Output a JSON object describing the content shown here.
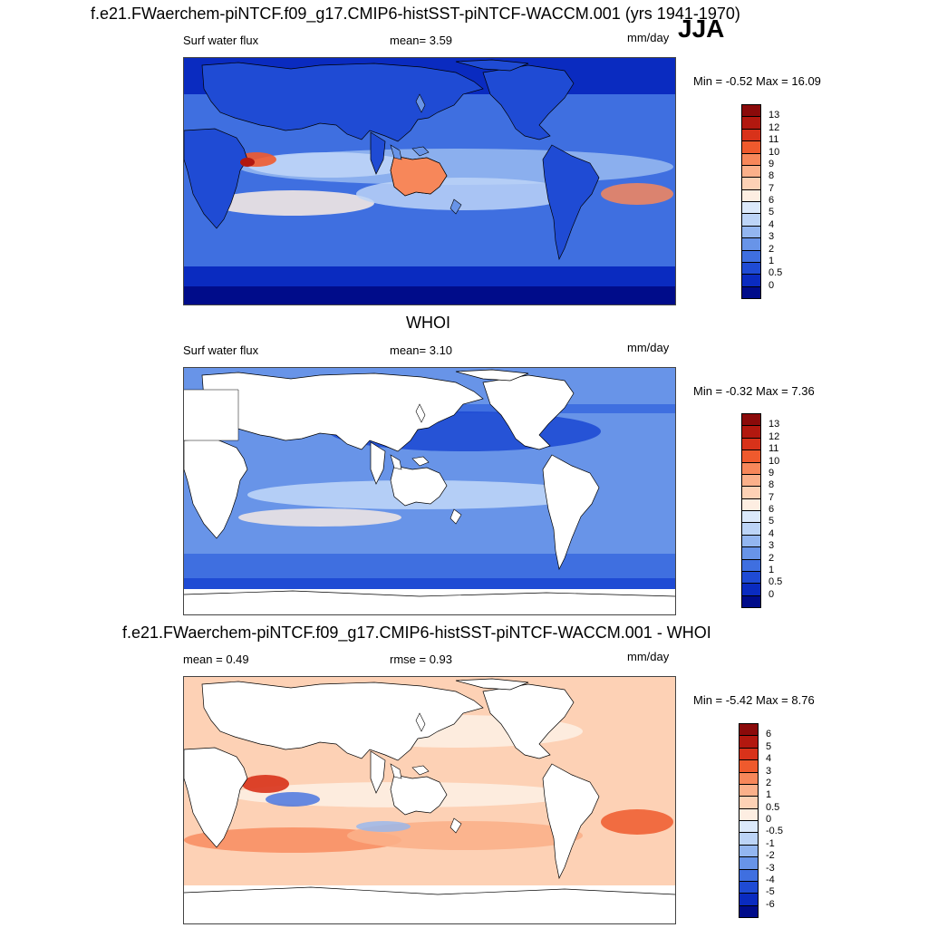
{
  "page": {
    "main_title": "f.e21.FWaerchem-piNTCF.f09_g17.CMIP6-histSST-piNTCF-WACCM.001 (yrs 1941-1970)",
    "season": "JJA"
  },
  "panels": [
    {
      "title": "",
      "left_label": "Surf water flux",
      "mid_label": "mean=   3.59",
      "units": "mm/day",
      "minmax": "Min =  -0.52 Max =  16.09",
      "palette": "precip",
      "colorbar_levels": [
        "13",
        "12",
        "11",
        "10",
        "9",
        "8",
        "7",
        "6",
        "5",
        "4",
        "3",
        "2",
        "1",
        "0.5",
        "0"
      ],
      "colorbar_colors": [
        "#8b0a0a",
        "#b2180f",
        "#d8321a",
        "#ef5a2d",
        "#f7875a",
        "#fbb08a",
        "#fdd1b5",
        "#fdeee2",
        "#dbe9fb",
        "#bcd4f7",
        "#93b6f0",
        "#6894e8",
        "#3f6fe0",
        "#1f4bd4",
        "#0a2bc0",
        "#000c8a"
      ]
    },
    {
      "title": "WHOI",
      "left_label": "Surf water flux",
      "mid_label": "mean=   3.10",
      "units": "mm/day",
      "minmax": "Min =  -0.32 Max =   7.36",
      "palette": "precip",
      "colorbar_levels": [
        "13",
        "12",
        "11",
        "10",
        "9",
        "8",
        "7",
        "6",
        "5",
        "4",
        "3",
        "2",
        "1",
        "0.5",
        "0"
      ],
      "colorbar_colors": [
        "#8b0a0a",
        "#b2180f",
        "#d8321a",
        "#ef5a2d",
        "#f7875a",
        "#fbb08a",
        "#fdd1b5",
        "#fdeee2",
        "#dbe9fb",
        "#bcd4f7",
        "#93b6f0",
        "#6894e8",
        "#3f6fe0",
        "#1f4bd4",
        "#0a2bc0",
        "#000c8a"
      ]
    },
    {
      "title": "f.e21.FWaerchem-piNTCF.f09_g17.CMIP6-histSST-piNTCF-WACCM.001 - WHOI",
      "left_label": "mean =   0.49",
      "mid_label": "rmse =   0.93",
      "units": "mm/day",
      "minmax": "Min =  -5.42 Max =   8.76",
      "palette": "diff",
      "colorbar_levels": [
        "6",
        "5",
        "4",
        "3",
        "2",
        "1",
        "0.5",
        "0",
        "-0.5",
        "-1",
        "-2",
        "-3",
        "-4",
        "-5",
        "-6"
      ],
      "colorbar_colors": [
        "#8b0a0a",
        "#b2180f",
        "#d8321a",
        "#ef5a2d",
        "#f7875a",
        "#fbb08a",
        "#fdd1b5",
        "#fdeee2",
        "#dbe9fb",
        "#bcd4f7",
        "#93b6f0",
        "#6894e8",
        "#3f6fe0",
        "#1f4bd4",
        "#0a2bc0",
        "#000c8a"
      ]
    }
  ]
}
